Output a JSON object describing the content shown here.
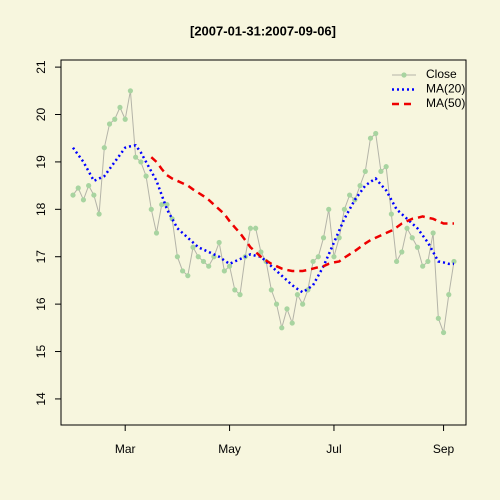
{
  "chart_data": {
    "type": "line",
    "title": "[2007-01-31:2007-09-06]",
    "categories": [
      null,
      null,
      null,
      null,
      null,
      null,
      null,
      null,
      null,
      null,
      "Mar",
      null,
      null,
      null,
      null,
      null,
      null,
      null,
      null,
      null,
      null,
      null,
      null,
      null,
      null,
      null,
      null,
      null,
      null,
      null,
      "May",
      null,
      null,
      null,
      null,
      null,
      null,
      null,
      null,
      null,
      null,
      null,
      null,
      null,
      null,
      null,
      null,
      null,
      null,
      null,
      "Jul",
      null,
      null,
      null,
      null,
      null,
      null,
      null,
      null,
      null,
      null,
      null,
      null,
      null,
      null,
      null,
      null,
      null,
      null,
      null,
      null,
      "Sep",
      null,
      null
    ],
    "series": [
      {
        "name": "Close",
        "color": "#a8d4a0",
        "line_color": "#b4b4a8",
        "linestyle": "solid",
        "marker": true,
        "values": [
          18.3,
          18.45,
          18.2,
          18.5,
          18.3,
          17.9,
          19.3,
          19.8,
          19.9,
          20.15,
          19.9,
          20.5,
          19.1,
          19.0,
          18.7,
          18.0,
          17.5,
          18.1,
          18.1,
          17.8,
          17.0,
          16.7,
          16.6,
          17.2,
          17.0,
          16.9,
          16.8,
          17.0,
          17.3,
          16.7,
          16.8,
          16.3,
          16.2,
          17.0,
          17.6,
          17.6,
          17.1,
          16.9,
          16.3,
          16.0,
          15.5,
          15.9,
          15.6,
          16.2,
          16.0,
          16.3,
          16.9,
          17.0,
          17.4,
          18.0,
          17.0,
          17.4,
          18.0,
          18.3,
          18.2,
          18.5,
          18.8,
          19.5,
          19.6,
          18.8,
          18.9,
          17.9,
          16.9,
          17.1,
          17.6,
          17.4,
          17.2,
          16.8,
          16.9,
          17.5,
          15.7,
          15.4,
          16.2,
          16.9
        ]
      },
      {
        "name": "MA(20)",
        "color": "#0000ff",
        "linestyle": "dotted",
        "marker": false,
        "values": [
          19.3,
          19.15,
          19.0,
          18.8,
          18.6,
          18.65,
          18.7,
          18.85,
          19.0,
          19.15,
          19.3,
          19.33,
          19.35,
          19.2,
          19.0,
          18.8,
          18.6,
          18.3,
          18.0,
          17.8,
          17.6,
          17.5,
          17.4,
          17.3,
          17.2,
          17.15,
          17.1,
          17.05,
          17.0,
          16.92,
          16.85,
          16.9,
          16.95,
          17.0,
          17.05,
          17.02,
          17.0,
          16.9,
          16.8,
          16.7,
          16.6,
          16.5,
          16.4,
          16.32,
          16.25,
          16.32,
          16.4,
          16.6,
          16.8,
          17.05,
          17.3,
          17.55,
          17.8,
          18.0,
          18.2,
          18.35,
          18.5,
          18.58,
          18.65,
          18.52,
          18.4,
          18.2,
          18.0,
          17.9,
          17.8,
          17.7,
          17.6,
          17.45,
          17.3,
          17.1,
          16.9,
          16.88,
          16.85,
          16.85
        ]
      },
      {
        "name": "MA(50)",
        "color": "#ee0000",
        "linestyle": "dashed",
        "marker": false,
        "values": [
          null,
          null,
          null,
          null,
          null,
          null,
          null,
          null,
          null,
          null,
          null,
          null,
          null,
          null,
          null,
          19.1,
          19.0,
          18.85,
          18.72,
          18.65,
          18.6,
          18.55,
          18.5,
          18.42,
          18.35,
          18.28,
          18.2,
          18.1,
          18.0,
          17.9,
          17.75,
          17.62,
          17.5,
          17.35,
          17.2,
          17.1,
          17.0,
          16.92,
          16.85,
          16.8,
          16.75,
          16.72,
          16.7,
          16.7,
          16.7,
          16.72,
          16.75,
          16.78,
          16.8,
          16.85,
          16.88,
          16.9,
          16.98,
          17.05,
          17.12,
          17.2,
          17.28,
          17.35,
          17.4,
          17.45,
          17.5,
          17.55,
          17.62,
          17.7,
          17.75,
          17.8,
          17.82,
          17.85,
          17.82,
          17.8,
          17.75,
          17.7,
          17.7,
          17.7
        ]
      }
    ],
    "ylim": [
      13.45,
      21.15
    ],
    "yticks": [
      14,
      15,
      16,
      17,
      18,
      19,
      20,
      21
    ],
    "legend": "top-right"
  }
}
